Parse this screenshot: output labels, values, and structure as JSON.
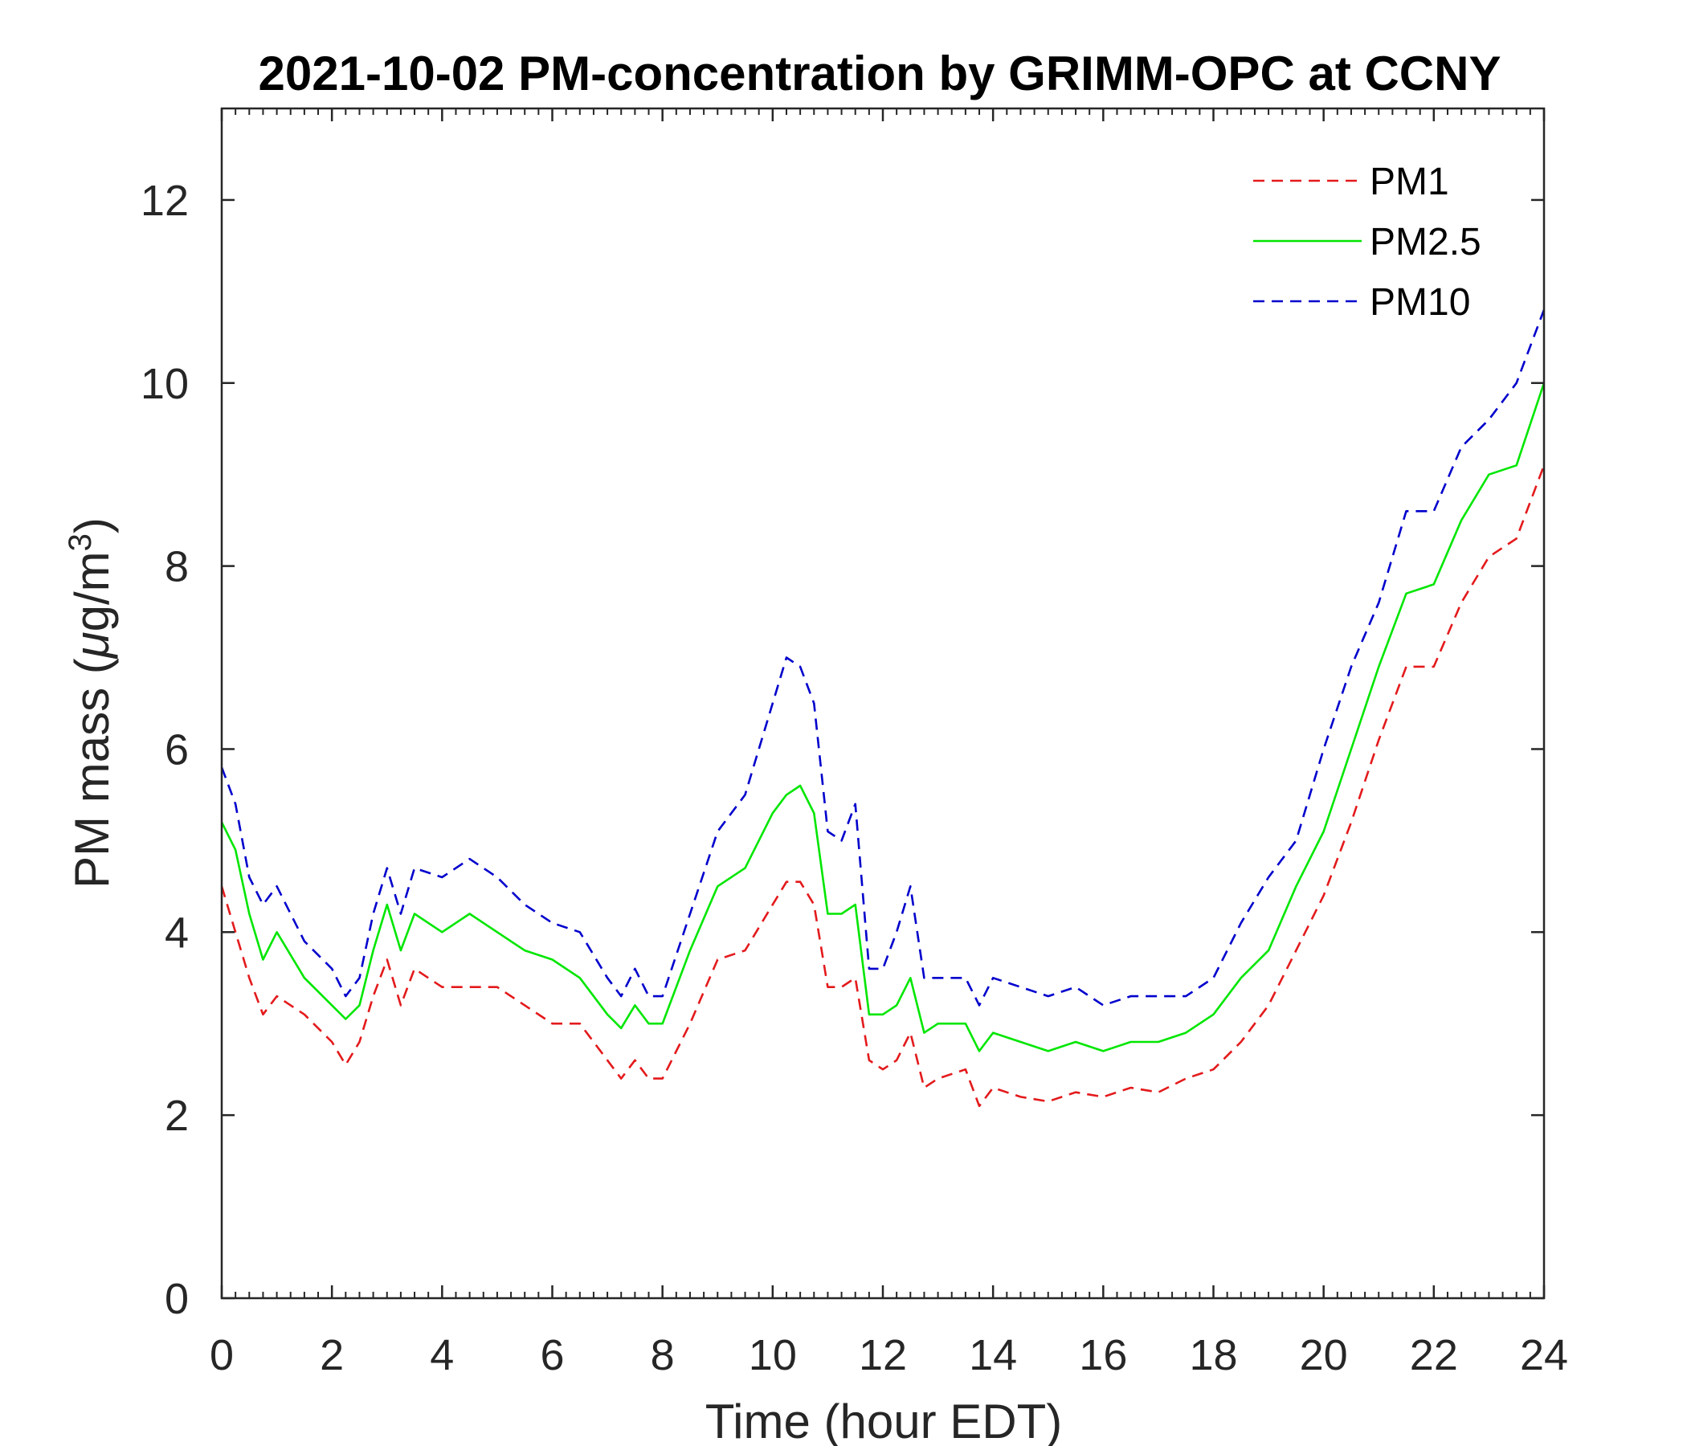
{
  "chart_data": {
    "type": "line",
    "title": "2021-10-02 PM-concentration by GRIMM-OPC at CCNY",
    "xlabel": "Time (hour EDT)",
    "ylabel_main": "PM mass (",
    "ylabel_mu": "μ",
    "ylabel_unit": "g/m",
    "ylabel_sup": "3",
    "ylabel_close": ")",
    "xlim": [
      0,
      24
    ],
    "ylim": [
      0,
      13
    ],
    "xticks": [
      "0",
      "2",
      "4",
      "6",
      "8",
      "10",
      "12",
      "14",
      "16",
      "18",
      "20",
      "22",
      "24"
    ],
    "yticks": [
      "0",
      "2",
      "4",
      "6",
      "8",
      "10",
      "12"
    ],
    "legend_position": "top-right",
    "series": [
      {
        "name": "PM1",
        "color": "#e31a1c",
        "style": "dashed",
        "x": [
          0,
          0.25,
          0.5,
          0.75,
          1.0,
          1.5,
          2.0,
          2.25,
          2.5,
          2.75,
          3.0,
          3.25,
          3.5,
          4.0,
          4.5,
          5.0,
          5.5,
          6.0,
          6.5,
          7.0,
          7.25,
          7.5,
          7.75,
          8.0,
          8.5,
          9.0,
          9.5,
          10.0,
          10.25,
          10.5,
          10.75,
          11.0,
          11.25,
          11.5,
          11.75,
          12.0,
          12.25,
          12.5,
          12.75,
          13.0,
          13.5,
          13.75,
          14.0,
          14.5,
          15.0,
          15.5,
          16.0,
          16.5,
          17.0,
          17.5,
          18.0,
          18.5,
          19.0,
          19.5,
          20.0,
          20.5,
          21.0,
          21.5,
          22.0,
          22.5,
          23.0,
          23.5,
          24.0
        ],
        "values": [
          4.5,
          4.0,
          3.5,
          3.1,
          3.3,
          3.1,
          2.8,
          2.55,
          2.8,
          3.3,
          3.7,
          3.2,
          3.6,
          3.4,
          3.4,
          3.4,
          3.2,
          3.0,
          3.0,
          2.6,
          2.4,
          2.6,
          2.4,
          2.4,
          3.0,
          3.7,
          3.8,
          4.3,
          4.55,
          4.55,
          4.3,
          3.4,
          3.4,
          3.5,
          2.6,
          2.5,
          2.6,
          2.9,
          2.3,
          2.4,
          2.5,
          2.1,
          2.3,
          2.2,
          2.15,
          2.25,
          2.2,
          2.3,
          2.25,
          2.4,
          2.5,
          2.8,
          3.2,
          3.8,
          4.4,
          5.2,
          6.1,
          6.9,
          6.9,
          7.6,
          8.1,
          8.3,
          9.1
        ]
      },
      {
        "name": "PM2.5",
        "color": "#00e600",
        "style": "solid",
        "x": [
          0,
          0.25,
          0.5,
          0.75,
          1.0,
          1.5,
          2.0,
          2.25,
          2.5,
          2.75,
          3.0,
          3.25,
          3.5,
          4.0,
          4.5,
          5.0,
          5.5,
          6.0,
          6.5,
          7.0,
          7.25,
          7.5,
          7.75,
          8.0,
          8.5,
          9.0,
          9.5,
          10.0,
          10.25,
          10.5,
          10.75,
          11.0,
          11.25,
          11.5,
          11.75,
          12.0,
          12.25,
          12.5,
          12.75,
          13.0,
          13.5,
          13.75,
          14.0,
          14.5,
          15.0,
          15.5,
          16.0,
          16.5,
          17.0,
          17.5,
          18.0,
          18.5,
          19.0,
          19.5,
          20.0,
          20.5,
          21.0,
          21.5,
          22.0,
          22.5,
          23.0,
          23.5,
          24.0
        ],
        "values": [
          5.2,
          4.9,
          4.2,
          3.7,
          4.0,
          3.5,
          3.2,
          3.05,
          3.2,
          3.8,
          4.3,
          3.8,
          4.2,
          4.0,
          4.2,
          4.0,
          3.8,
          3.7,
          3.5,
          3.1,
          2.95,
          3.2,
          3.0,
          3.0,
          3.8,
          4.5,
          4.7,
          5.3,
          5.5,
          5.6,
          5.3,
          4.2,
          4.2,
          4.3,
          3.1,
          3.1,
          3.2,
          3.5,
          2.9,
          3.0,
          3.0,
          2.7,
          2.9,
          2.8,
          2.7,
          2.8,
          2.7,
          2.8,
          2.8,
          2.9,
          3.1,
          3.5,
          3.8,
          4.5,
          5.1,
          6.0,
          6.9,
          7.7,
          7.8,
          8.5,
          9.0,
          9.1,
          10.0
        ]
      },
      {
        "name": "PM10",
        "color": "#0000cc",
        "style": "dashed",
        "x": [
          0,
          0.25,
          0.5,
          0.75,
          1.0,
          1.5,
          2.0,
          2.25,
          2.5,
          2.75,
          3.0,
          3.25,
          3.5,
          4.0,
          4.5,
          5.0,
          5.5,
          6.0,
          6.5,
          7.0,
          7.25,
          7.5,
          7.75,
          8.0,
          8.5,
          9.0,
          9.5,
          10.0,
          10.25,
          10.5,
          10.75,
          11.0,
          11.25,
          11.5,
          11.75,
          12.0,
          12.25,
          12.5,
          12.75,
          13.0,
          13.5,
          13.75,
          14.0,
          14.5,
          15.0,
          15.5,
          16.0,
          16.5,
          17.0,
          17.5,
          18.0,
          18.5,
          19.0,
          19.5,
          20.0,
          20.5,
          21.0,
          21.5,
          22.0,
          22.5,
          23.0,
          23.5,
          24.0
        ],
        "values": [
          5.8,
          5.4,
          4.6,
          4.3,
          4.5,
          3.9,
          3.6,
          3.3,
          3.5,
          4.2,
          4.7,
          4.2,
          4.7,
          4.6,
          4.8,
          4.6,
          4.3,
          4.1,
          4.0,
          3.5,
          3.3,
          3.6,
          3.3,
          3.3,
          4.2,
          5.1,
          5.5,
          6.5,
          7.0,
          6.9,
          6.5,
          5.1,
          5.0,
          5.4,
          3.6,
          3.6,
          4.0,
          4.5,
          3.5,
          3.5,
          3.5,
          3.2,
          3.5,
          3.4,
          3.3,
          3.4,
          3.2,
          3.3,
          3.3,
          3.3,
          3.5,
          4.1,
          4.6,
          5.0,
          6.0,
          6.9,
          7.6,
          8.6,
          8.6,
          9.3,
          9.6,
          10.0,
          10.8
        ]
      }
    ]
  }
}
